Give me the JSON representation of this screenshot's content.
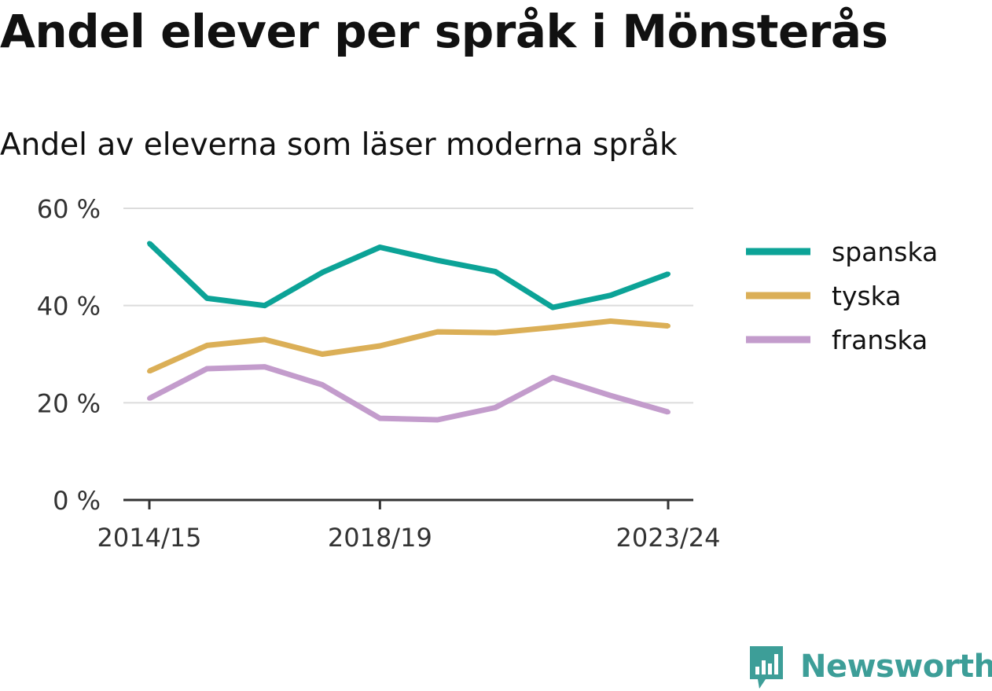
{
  "title": "Andel elever per språk i Mönsterås",
  "subtitle": "Andel av eleverna som läser moderna språk",
  "brand": {
    "name": "Newsworthy",
    "icon": "newsworthy-logo-icon",
    "color": "#3d9e98"
  },
  "chart_data": {
    "type": "line",
    "title": "Andel elever per språk i Mönsterås",
    "subtitle": "Andel av eleverna som läser moderna språk",
    "x": [
      "2014/15",
      "2015/16",
      "2016/17",
      "2017/18",
      "2018/19",
      "2019/20",
      "2020/21",
      "2021/22",
      "2022/23",
      "2023/24"
    ],
    "x_tick_labels": [
      "2014/15",
      "2018/19",
      "2023/24"
    ],
    "y_ticks": [
      0,
      20,
      40,
      60
    ],
    "y_tick_labels": [
      "0 %",
      "20 %",
      "40 %",
      "60 %"
    ],
    "ylim": [
      0,
      60
    ],
    "grid": true,
    "legend_position": "right",
    "series": [
      {
        "name": "spanska",
        "color": "#0ca397",
        "values": [
          52.8,
          41.5,
          40.0,
          46.8,
          52.0,
          49.3,
          47.0,
          39.6,
          42.1,
          46.5
        ]
      },
      {
        "name": "tyska",
        "color": "#dbaf57",
        "values": [
          26.5,
          31.8,
          33.0,
          30.0,
          31.7,
          34.6,
          34.4,
          35.5,
          36.8,
          35.8
        ]
      },
      {
        "name": "franska",
        "color": "#c39ccc",
        "values": [
          20.9,
          27.0,
          27.4,
          23.7,
          16.8,
          16.5,
          19.0,
          25.2,
          21.5,
          18.1
        ]
      }
    ]
  }
}
